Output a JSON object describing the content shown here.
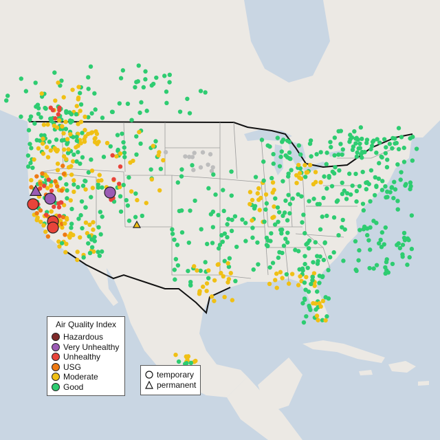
{
  "colors": {
    "ocean": "#c9d6e3",
    "land": "#ece9e4",
    "hazardous": "#7e2a2a",
    "very_unhealthy": "#9b5bb4",
    "unhealthy": "#e8443a",
    "usg": "#ee7a14",
    "moderate": "#f0c015",
    "good": "#2ecc71"
  },
  "aqi_legend": {
    "title": "Air Quality Index",
    "items": [
      {
        "label": "Hazardous",
        "color": "#7e2a2a"
      },
      {
        "label": "Very Unhealthy",
        "color": "#9b5bb4"
      },
      {
        "label": "Unhealthy",
        "color": "#e8443a"
      },
      {
        "label": "USG",
        "color": "#ee7a14"
      },
      {
        "label": "Moderate",
        "color": "#f0c015"
      },
      {
        "label": "Good",
        "color": "#2ecc71"
      }
    ]
  },
  "shape_legend": {
    "items": [
      {
        "label": "temporary",
        "shape": "circle"
      },
      {
        "label": "permanent",
        "shape": "triangle"
      }
    ]
  }
}
